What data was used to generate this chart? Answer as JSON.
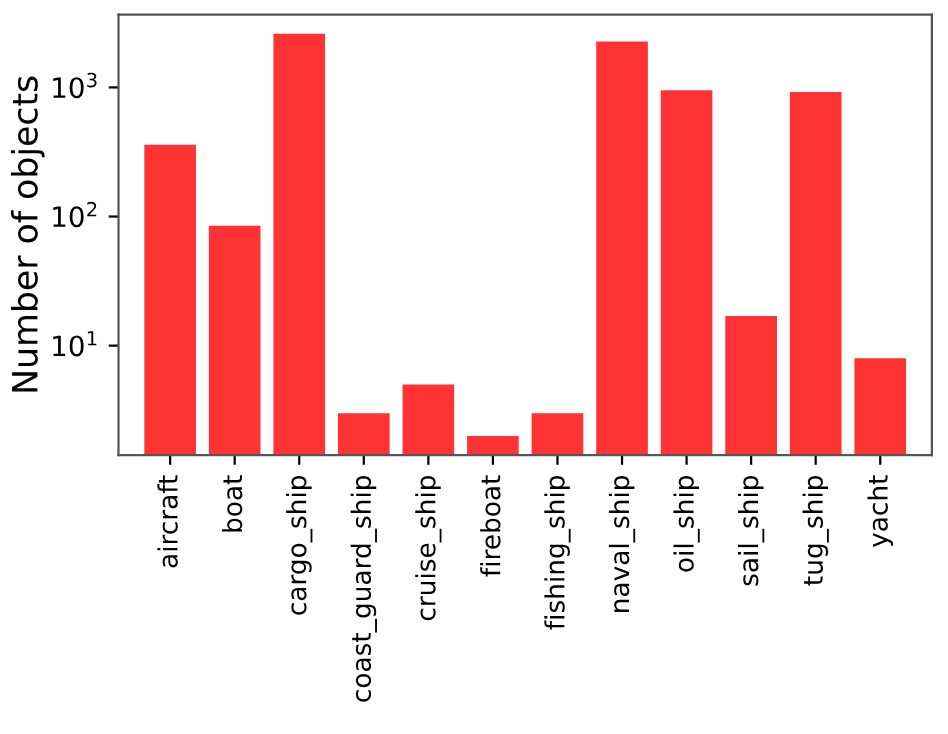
{
  "chart_data": {
    "type": "bar",
    "ylabel": "Number of objects",
    "categories": [
      "aircraft",
      "boat",
      "cargo_ship",
      "coast_guard_ship",
      "cruise_ship",
      "fireboat",
      "fishing_ship",
      "naval_ship",
      "oil_ship",
      "sail_ship",
      "tug_ship",
      "yacht"
    ],
    "values": [
      360,
      85,
      2600,
      3,
      5,
      2,
      3,
      2270,
      950,
      17,
      920,
      8
    ],
    "color": "#ff3333",
    "log": "y",
    "ylim": [
      1.42,
      3660
    ],
    "yticks": [
      {
        "value": 10,
        "label": "10$^{1}$"
      },
      {
        "value": 100,
        "label": "10$^{2}$"
      },
      {
        "value": 1000,
        "label": "10$^{3}$"
      }
    ],
    "grid": false
  }
}
